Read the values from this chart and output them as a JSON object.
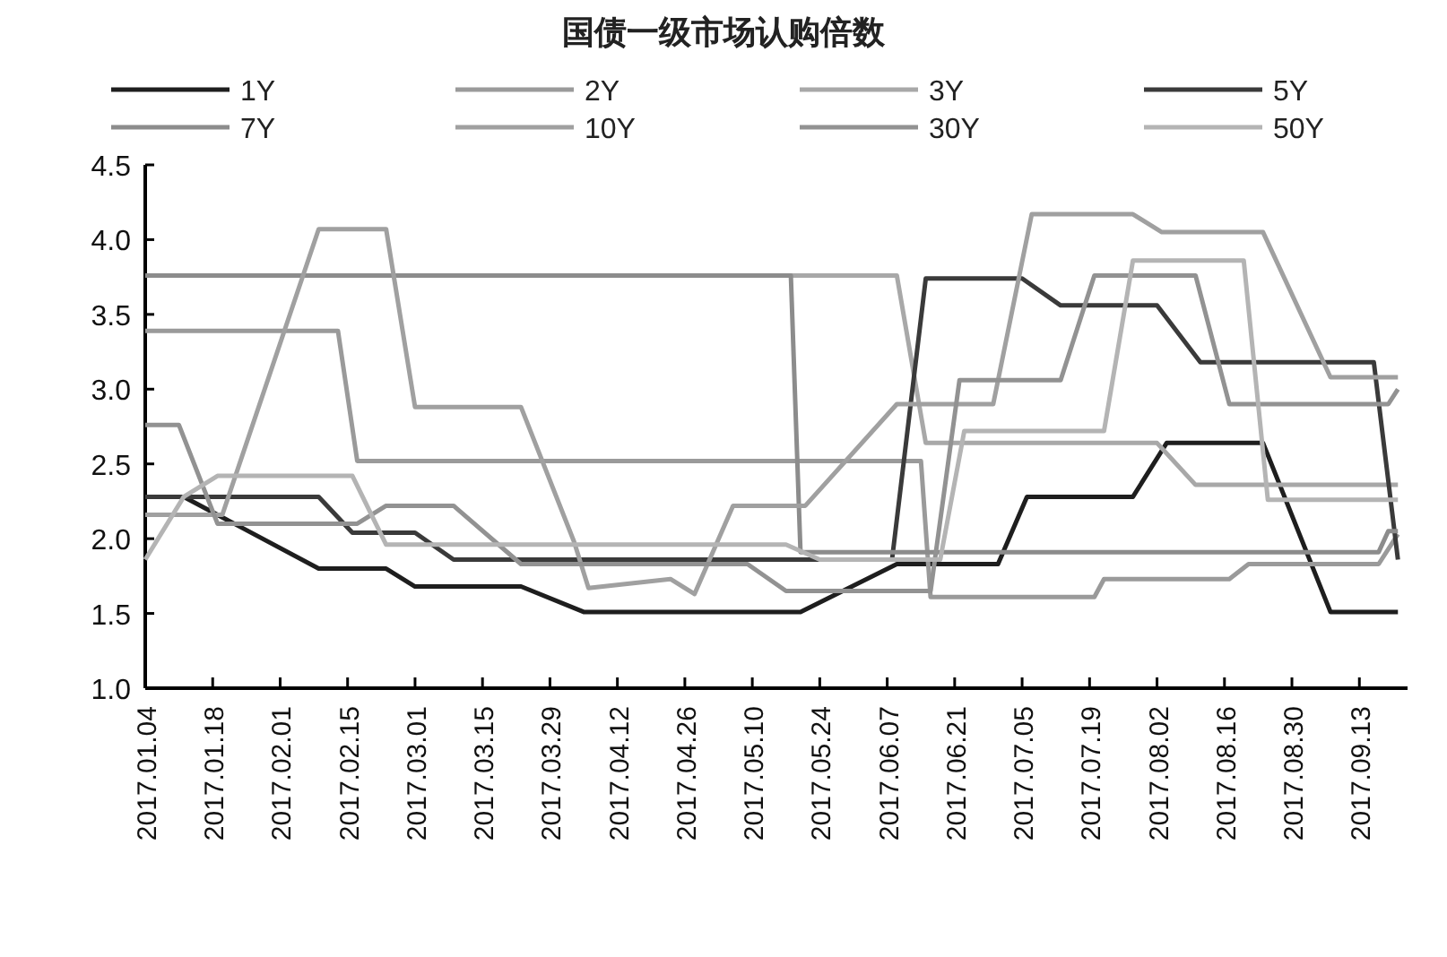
{
  "chart_data": {
    "type": "line",
    "title": "国债一级市场认购倍数",
    "legend": "top",
    "xlim": [
      "2017-01-04",
      "2017-09-23"
    ],
    "ylim": [
      1,
      4.5
    ],
    "yticks": [
      {
        "value": 1,
        "label": "1.0"
      },
      1.5,
      {
        "value": 2,
        "label": "2.0"
      },
      2.5,
      {
        "value": 3,
        "label": "3.0"
      },
      3.5,
      {
        "value": 4,
        "label": "4.0"
      },
      4.5
    ],
    "xticks": [
      {
        "value": "2017-01-04",
        "label": "2017.01.04"
      },
      {
        "value": "2017-01-18",
        "label": "2017.01.18"
      },
      {
        "value": "2017-02-01",
        "label": "2017.02.01"
      },
      {
        "value": "2017-02-15",
        "label": "2017.02.15"
      },
      {
        "value": "2017-03-01",
        "label": "2017.03.01"
      },
      {
        "value": "2017-03-15",
        "label": "2017.03.15"
      },
      {
        "value": "2017-03-29",
        "label": "2017.03.29"
      },
      {
        "value": "2017-04-12",
        "label": "2017.04.12"
      },
      {
        "value": "2017-04-26",
        "label": "2017.04.26"
      },
      {
        "value": "2017-05-10",
        "label": "2017.05.10"
      },
      {
        "value": "2017-05-24",
        "label": "2017.05.24"
      },
      {
        "value": "2017-06-07",
        "label": "2017.06.07"
      },
      {
        "value": "2017-06-21",
        "label": "2017.06.21"
      },
      {
        "value": "2017-07-05",
        "label": "2017.07.05"
      },
      {
        "value": "2017-07-19",
        "label": "2017.07.19"
      },
      {
        "value": "2017-08-02",
        "label": "2017.08.02"
      },
      {
        "value": "2017-08-16",
        "label": "2017.08.16"
      },
      {
        "value": "2017-08-30",
        "label": "2017.08.30"
      },
      {
        "value": "2017-09-13",
        "label": "2017.09.13"
      }
    ],
    "series": [
      {
        "name": "1Y",
        "color": "#1e1e1e",
        "x": [
          "2017-01-04",
          "2017-01-12",
          "2017-02-09",
          "2017-02-23",
          "2017-03-01",
          "2017-03-23",
          "2017-04-05",
          "2017-05-20",
          "2017-06-09",
          "2017-06-30",
          "2017-07-06",
          "2017-07-28",
          "2017-08-04",
          "2017-08-24",
          "2017-09-07",
          "2017-09-21"
        ],
        "values": [
          2.28,
          2.28,
          1.8,
          1.8,
          1.68,
          1.68,
          1.51,
          1.51,
          1.83,
          1.83,
          2.28,
          2.28,
          2.64,
          2.64,
          1.51,
          1.51
        ]
      },
      {
        "name": "2Y",
        "color": "#9a9a9a",
        "x": [
          "2017-01-04",
          "2017-02-13",
          "2017-02-17",
          "2017-06-14",
          "2017-06-16",
          "2017-07-20",
          "2017-07-22",
          "2017-08-17",
          "2017-08-21",
          "2017-09-17",
          "2017-09-21"
        ],
        "values": [
          3.39,
          3.39,
          2.52,
          2.52,
          1.61,
          1.61,
          1.73,
          1.73,
          1.83,
          1.83,
          2.03
        ]
      },
      {
        "name": "3Y",
        "color": "#a8a8a8",
        "x": [
          "2017-01-04",
          "2017-06-09",
          "2017-06-15",
          "2017-08-02",
          "2017-08-10",
          "2017-09-21"
        ],
        "values": [
          3.76,
          3.76,
          2.64,
          2.64,
          2.36,
          2.36
        ]
      },
      {
        "name": "5Y",
        "color": "#3a3a3a",
        "x": [
          "2017-01-04",
          "2017-02-09",
          "2017-02-16",
          "2017-03-01",
          "2017-03-09",
          "2017-06-08",
          "2017-06-15",
          "2017-07-05",
          "2017-07-13",
          "2017-08-02",
          "2017-08-11",
          "2017-09-16",
          "2017-09-21"
        ],
        "values": [
          2.28,
          2.28,
          2.04,
          2.04,
          1.86,
          1.86,
          3.74,
          3.74,
          3.56,
          3.56,
          3.18,
          3.18,
          1.86
        ]
      },
      {
        "name": "7Y",
        "color": "#8c8c8c",
        "x": [
          "2017-01-04",
          "2017-05-18",
          "2017-05-20",
          "2017-09-17",
          "2017-09-19",
          "2017-09-21"
        ],
        "values": [
          3.76,
          3.76,
          1.91,
          1.91,
          2.05,
          2.05
        ]
      },
      {
        "name": "10Y",
        "color": "#a0a0a0",
        "x": [
          "2017-01-04",
          "2017-01-20",
          "2017-02-09",
          "2017-02-23",
          "2017-03-01",
          "2017-03-23",
          "2017-04-03",
          "2017-04-06",
          "2017-04-23",
          "2017-04-28",
          "2017-05-06",
          "2017-05-21",
          "2017-06-09",
          "2017-06-29",
          "2017-07-07",
          "2017-07-28",
          "2017-08-03",
          "2017-08-24",
          "2017-09-07",
          "2017-09-21"
        ],
        "values": [
          2.16,
          2.16,
          4.07,
          4.07,
          2.88,
          2.88,
          1.98,
          1.67,
          1.73,
          1.63,
          2.22,
          2.22,
          2.9,
          2.9,
          4.17,
          4.17,
          4.05,
          4.05,
          3.08,
          3.08
        ]
      },
      {
        "name": "30Y",
        "color": "#929292",
        "x": [
          "2017-01-04",
          "2017-01-11",
          "2017-01-19",
          "2017-02-17",
          "2017-02-23",
          "2017-03-09",
          "2017-03-23",
          "2017-05-09",
          "2017-05-17",
          "2017-06-16",
          "2017-06-22",
          "2017-07-13",
          "2017-07-20",
          "2017-08-10",
          "2017-08-17",
          "2017-09-19",
          "2017-09-21"
        ],
        "values": [
          2.76,
          2.76,
          2.1,
          2.1,
          2.22,
          2.22,
          1.83,
          1.83,
          1.65,
          1.65,
          3.06,
          3.06,
          3.76,
          3.76,
          2.9,
          2.9,
          3.0
        ]
      },
      {
        "name": "50Y",
        "color": "#b4b4b4",
        "x": [
          "2017-01-04",
          "2017-01-12",
          "2017-01-19",
          "2017-02-16",
          "2017-02-23",
          "2017-05-17",
          "2017-05-24",
          "2017-06-18",
          "2017-06-23",
          "2017-07-22",
          "2017-07-28",
          "2017-08-20",
          "2017-08-25",
          "2017-09-21"
        ],
        "values": [
          1.86,
          2.28,
          2.42,
          2.42,
          1.96,
          1.96,
          1.86,
          1.86,
          2.72,
          2.72,
          3.86,
          3.86,
          2.26,
          2.26
        ]
      }
    ]
  }
}
